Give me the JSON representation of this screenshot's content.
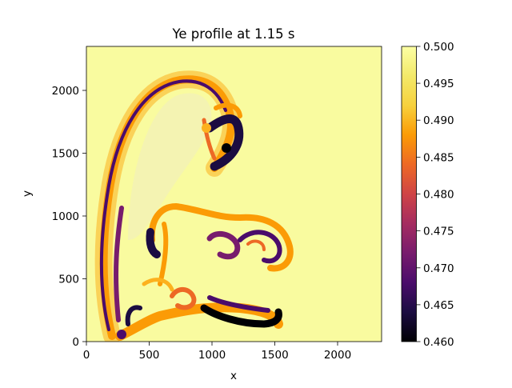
{
  "chart_data": {
    "type": "heatmap",
    "title": "Ye profile at 1.15 s",
    "xlabel": "x",
    "ylabel": "y",
    "xlim": [
      0,
      2350
    ],
    "ylim": [
      0,
      2350
    ],
    "xticks": [
      "0",
      "500",
      "1000",
      "1500",
      "2000"
    ],
    "xtick_values": [
      0,
      500,
      1000,
      1500,
      2000
    ],
    "yticks": [
      "0",
      "500",
      "1000",
      "1500",
      "2000"
    ],
    "ytick_values": [
      0,
      500,
      1000,
      1500,
      2000
    ],
    "colormap": "inferno",
    "colorbar": {
      "min": 0.46,
      "max": 0.5,
      "ticks": [
        "0.460",
        "0.465",
        "0.470",
        "0.475",
        "0.480",
        "0.485",
        "0.490",
        "0.495",
        "0.500"
      ],
      "tick_values": [
        0.46,
        0.465,
        0.47,
        0.475,
        0.48,
        0.485,
        0.49,
        0.495,
        0.5
      ]
    },
    "background_value": 0.5,
    "features": [
      {
        "name": "outer-arc-band",
        "min_value": 0.465
      },
      {
        "name": "upper-hook",
        "min_value": 0.46
      },
      {
        "name": "middle-mushroom-cap",
        "min_value": 0.462
      },
      {
        "name": "lower-mushroom-cap",
        "min_value": 0.46
      }
    ]
  }
}
